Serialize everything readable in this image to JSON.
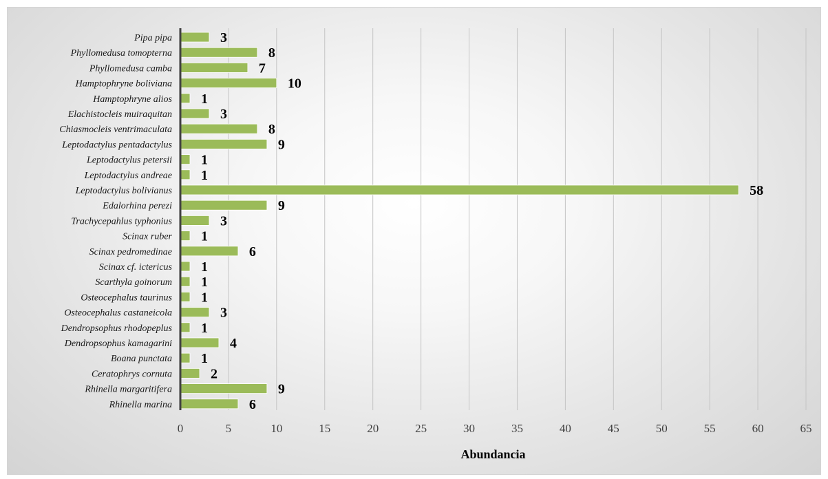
{
  "chart_data": {
    "type": "bar",
    "orientation": "horizontal",
    "categories": [
      "Pipa pipa",
      "Phyllomedusa tomopterna",
      "Phyllomedusa camba",
      "Hamptophryne boliviana",
      "Hamptophryne alios",
      "Elachistocleis muiraquitan",
      "Chiasmocleis ventrimaculata",
      "Leptodactylus pentadactylus",
      "Leptodactylus petersii",
      "Leptodactylus andreae",
      "Leptodactylus bolivianus",
      "Edalorhina perezi",
      "Trachycepahlus typhonius",
      "Scinax ruber",
      "Scinax pedromedinae",
      "Scinax cf. ictericus",
      "Scarthyla goinorum",
      "Osteocephalus taurinus",
      "Osteocephalus castaneicola",
      "Dendropsophus rhodopeplus",
      "Dendropsophus kamagarini",
      "Boana punctata",
      "Ceratophrys cornuta",
      "Rhinella margaritifera",
      "Rhinella marina"
    ],
    "values": [
      3,
      8,
      7,
      10,
      1,
      3,
      8,
      9,
      1,
      1,
      58,
      9,
      3,
      1,
      6,
      1,
      1,
      1,
      3,
      1,
      4,
      1,
      2,
      9,
      6
    ],
    "data_labels": [
      "3",
      "8",
      "7",
      "10",
      "1",
      "3",
      "8",
      "9",
      "1",
      "1",
      "58",
      "9",
      "3",
      "1",
      "6",
      "1",
      "1",
      "1",
      "3",
      "1",
      "4",
      "1",
      "2",
      "9",
      "6"
    ],
    "xlabel": "Abundancia",
    "ylabel": "",
    "xlim": [
      0,
      65
    ],
    "xticks": [
      "0",
      "5",
      "10",
      "15",
      "20",
      "25",
      "30",
      "35",
      "40",
      "45",
      "50",
      "55",
      "60",
      "65"
    ],
    "grid": "vertical",
    "bar_color": "#9bbb59",
    "axis_line_color": "#404040"
  }
}
